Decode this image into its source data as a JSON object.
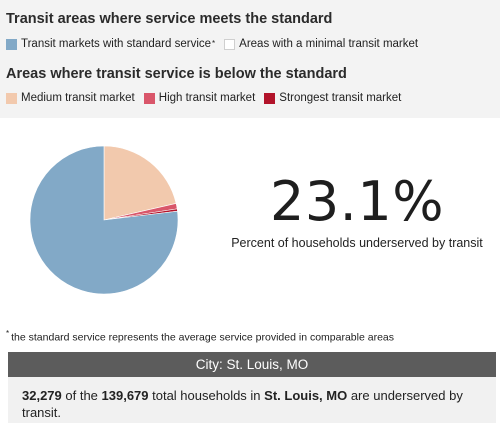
{
  "legend": {
    "meets_heading": "Transit areas where service meets the standard",
    "meets_items": [
      {
        "label": "Transit markets with standard service",
        "color": "#82a9c7",
        "has_star": true
      },
      {
        "label": "Areas with a minimal transit market",
        "color": "#ffffff",
        "has_star": false
      }
    ],
    "below_heading": "Areas where transit service is below the standard",
    "below_items": [
      {
        "label": "Medium transit market",
        "color": "#f2c9ad"
      },
      {
        "label": "High transit market",
        "color": "#d9566a"
      },
      {
        "label": "Strongest transit market",
        "color": "#b2132a"
      }
    ]
  },
  "chart_data": {
    "type": "pie",
    "unit": "percent",
    "slices": [
      {
        "label": "Medium transit market",
        "value": 21.4,
        "color": "#f2c9ad"
      },
      {
        "label": "High transit market",
        "value": 1.2,
        "color": "#d9566a"
      },
      {
        "label": "Strongest transit market",
        "value": 0.5,
        "color": "#b2132a"
      },
      {
        "label": "Transit markets with standard service",
        "value": 76.9,
        "color": "#82a9c7"
      }
    ]
  },
  "stat": {
    "value": "23.1%",
    "caption": "Percent of households underserved by transit"
  },
  "footnote": {
    "star": "*",
    "text": "the standard service represents the average service provided in comparable areas"
  },
  "city": {
    "header": "City: St. Louis, MO",
    "underserved": "32,279",
    "text_1": " of the ",
    "total": "139,679",
    "text_2": " total households in ",
    "name": "St. Louis, MO",
    "text_3": " are underserved by transit."
  }
}
